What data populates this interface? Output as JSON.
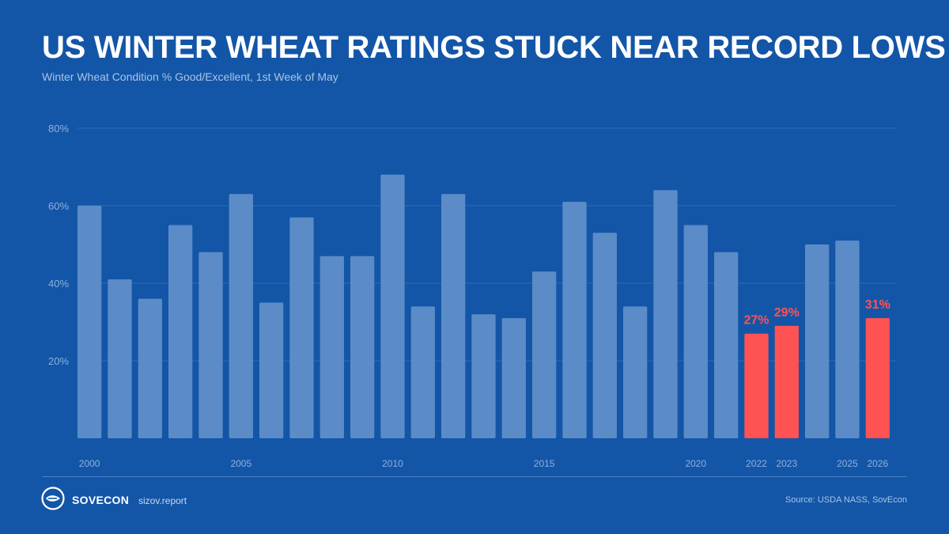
{
  "header": {
    "title": "US WINTER WHEAT RATINGS STUCK NEAR RECORD LOWS",
    "subtitle": "Winter Wheat Condition % Good/Excellent, 1st Week of May"
  },
  "footer": {
    "brand": "SOVECON",
    "website": "sizov.report",
    "source": "Source: USDA NASS, SovEcon"
  },
  "colors": {
    "background": "#1356a8",
    "bar_default": "#5b8cc8",
    "bar_highlight": "#ff5252",
    "grid": "#2f6bb6",
    "axis_label": "#8fb0db"
  },
  "chart_data": {
    "type": "bar",
    "title": "US WINTER WHEAT RATINGS STUCK NEAR RECORD LOWS",
    "subtitle": "Winter Wheat Condition % Good/Excellent, 1st Week of May",
    "xlabel": "",
    "ylabel": "",
    "ylim": [
      0,
      80
    ],
    "yticks": [
      20,
      40,
      60,
      80
    ],
    "ytick_labels": [
      "20%",
      "40%",
      "60%",
      "80%"
    ],
    "grid": true,
    "categories": [
      "2000",
      "2001",
      "2002",
      "2003",
      "2004",
      "2005",
      "2006",
      "2007",
      "2008",
      "2009",
      "2010",
      "2011",
      "2012",
      "2013",
      "2014",
      "2015",
      "2016",
      "2017",
      "2018",
      "2019",
      "2020",
      "2021",
      "2022",
      "2023",
      "2024",
      "2025",
      "2026"
    ],
    "xtick_labels": [
      "2000",
      "",
      "",
      "",
      "",
      "2005",
      "",
      "",
      "",
      "",
      "2010",
      "",
      "",
      "",
      "",
      "2015",
      "",
      "",
      "",
      "",
      "2020",
      "",
      "2022",
      "2023",
      "",
      "2025",
      "2026"
    ],
    "values": [
      60,
      41,
      36,
      55,
      48,
      63,
      35,
      57,
      47,
      47,
      68,
      34,
      63,
      32,
      31,
      43,
      61,
      53,
      34,
      64,
      55,
      48,
      27,
      29,
      50,
      51,
      31
    ],
    "highlight": [
      "2022",
      "2023",
      "2026"
    ],
    "data_labels": {
      "2022": "27%",
      "2023": "29%",
      "2026": "31%"
    }
  }
}
